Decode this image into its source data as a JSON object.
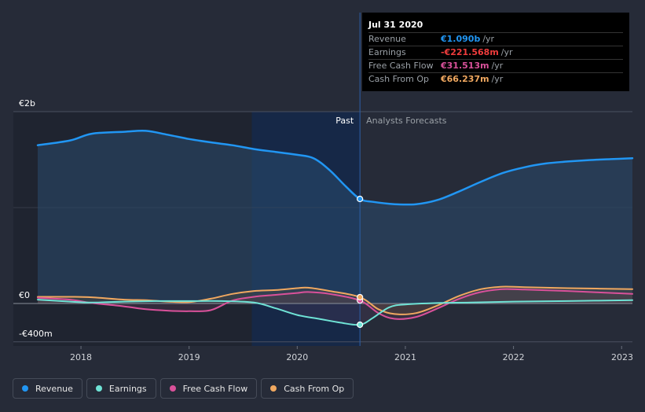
{
  "tooltip": {
    "date": "Jul 31 2020",
    "rows": [
      {
        "label": "Revenue",
        "value": "€1.090b",
        "unit": "/yr",
        "color": "#2196f3"
      },
      {
        "label": "Earnings",
        "value": "-€221.568m",
        "unit": "/yr",
        "color": "#f03c3c"
      },
      {
        "label": "Free Cash Flow",
        "value": "€31.513m",
        "unit": "/yr",
        "color": "#d9519a"
      },
      {
        "label": "Cash From Op",
        "value": "€66.237m",
        "unit": "/yr",
        "color": "#f0a860"
      }
    ]
  },
  "legend": [
    {
      "label": "Revenue",
      "color": "#2196f3"
    },
    {
      "label": "Earnings",
      "color": "#6fe3d6"
    },
    {
      "label": "Free Cash Flow",
      "color": "#d9519a"
    },
    {
      "label": "Cash From Op",
      "color": "#f0a860"
    }
  ],
  "chart_data": {
    "type": "line",
    "title": "",
    "y_unit": "€m",
    "ylim": [
      -400,
      2000
    ],
    "y_tick_labels": [
      {
        "value": 2000,
        "label": "€2b"
      },
      {
        "value": 0,
        "label": "€0"
      },
      {
        "value": -400,
        "label": "-€400m"
      }
    ],
    "xlim": [
      2017.6,
      2023.1
    ],
    "x_tick_labels": [
      {
        "value": 2018,
        "label": "2018"
      },
      {
        "value": 2019,
        "label": "2019"
      },
      {
        "value": 2020,
        "label": "2020"
      },
      {
        "value": 2021,
        "label": "2021"
      },
      {
        "value": 2022,
        "label": "2022"
      },
      {
        "value": 2023,
        "label": "2023"
      }
    ],
    "divider_x": 2020.58,
    "shade_start_x": 2019.58,
    "past_label": "Past",
    "forecast_label": "Analysts Forecasts",
    "highlight_x": 2020.58,
    "series": [
      {
        "name": "Revenue",
        "color": "#2196f3",
        "points": [
          [
            2017.6,
            1650
          ],
          [
            2017.9,
            1700
          ],
          [
            2018.1,
            1770
          ],
          [
            2018.4,
            1790
          ],
          [
            2018.6,
            1800
          ],
          [
            2018.8,
            1760
          ],
          [
            2019.0,
            1715
          ],
          [
            2019.2,
            1680
          ],
          [
            2019.4,
            1650
          ],
          [
            2019.6,
            1610
          ],
          [
            2019.8,
            1580
          ],
          [
            2020.0,
            1550
          ],
          [
            2020.15,
            1515
          ],
          [
            2020.3,
            1390
          ],
          [
            2020.45,
            1220
          ],
          [
            2020.58,
            1090
          ],
          [
            2020.7,
            1060
          ],
          [
            2020.9,
            1035
          ],
          [
            2021.1,
            1035
          ],
          [
            2021.3,
            1080
          ],
          [
            2021.5,
            1170
          ],
          [
            2021.7,
            1270
          ],
          [
            2021.9,
            1360
          ],
          [
            2022.1,
            1420
          ],
          [
            2022.3,
            1460
          ],
          [
            2022.5,
            1480
          ],
          [
            2022.7,
            1495
          ],
          [
            2022.9,
            1505
          ],
          [
            2023.1,
            1515
          ]
        ]
      },
      {
        "name": "Earnings",
        "color": "#6fe3d6",
        "points": [
          [
            2017.6,
            40
          ],
          [
            2017.9,
            20
          ],
          [
            2018.1,
            10
          ],
          [
            2018.4,
            20
          ],
          [
            2018.7,
            25
          ],
          [
            2019.0,
            25
          ],
          [
            2019.3,
            25
          ],
          [
            2019.6,
            10
          ],
          [
            2019.8,
            -50
          ],
          [
            2020.0,
            -120
          ],
          [
            2020.2,
            -160
          ],
          [
            2020.4,
            -200
          ],
          [
            2020.58,
            -221.568
          ],
          [
            2020.7,
            -150
          ],
          [
            2020.85,
            -40
          ],
          [
            2021.0,
            -10
          ],
          [
            2021.3,
            5
          ],
          [
            2021.6,
            10
          ],
          [
            2022.0,
            20
          ],
          [
            2022.5,
            25
          ],
          [
            2023.1,
            35
          ]
        ]
      },
      {
        "name": "Free Cash Flow",
        "color": "#d9519a",
        "points": [
          [
            2017.6,
            60
          ],
          [
            2017.9,
            40
          ],
          [
            2018.1,
            5
          ],
          [
            2018.4,
            -30
          ],
          [
            2018.6,
            -60
          ],
          [
            2018.8,
            -75
          ],
          [
            2019.0,
            -80
          ],
          [
            2019.2,
            -70
          ],
          [
            2019.4,
            30
          ],
          [
            2019.6,
            70
          ],
          [
            2019.8,
            90
          ],
          [
            2020.0,
            110
          ],
          [
            2020.1,
            120
          ],
          [
            2020.3,
            100
          ],
          [
            2020.58,
            31.513
          ],
          [
            2020.75,
            -100
          ],
          [
            2020.9,
            -160
          ],
          [
            2021.1,
            -140
          ],
          [
            2021.3,
            -50
          ],
          [
            2021.5,
            50
          ],
          [
            2021.7,
            120
          ],
          [
            2021.9,
            150
          ],
          [
            2022.1,
            145
          ],
          [
            2022.5,
            130
          ],
          [
            2023.1,
            100
          ]
        ]
      },
      {
        "name": "Cash From Op",
        "color": "#f0a860",
        "points": [
          [
            2017.6,
            70
          ],
          [
            2017.9,
            70
          ],
          [
            2018.1,
            65
          ],
          [
            2018.4,
            40
          ],
          [
            2018.6,
            35
          ],
          [
            2018.8,
            20
          ],
          [
            2019.0,
            15
          ],
          [
            2019.2,
            50
          ],
          [
            2019.4,
            100
          ],
          [
            2019.6,
            130
          ],
          [
            2019.8,
            140
          ],
          [
            2020.0,
            160
          ],
          [
            2020.1,
            165
          ],
          [
            2020.3,
            130
          ],
          [
            2020.58,
            66.237
          ],
          [
            2020.75,
            -60
          ],
          [
            2020.9,
            -110
          ],
          [
            2021.1,
            -100
          ],
          [
            2021.3,
            -20
          ],
          [
            2021.5,
            80
          ],
          [
            2021.7,
            150
          ],
          [
            2021.9,
            175
          ],
          [
            2022.1,
            170
          ],
          [
            2022.5,
            160
          ],
          [
            2023.1,
            150
          ]
        ]
      }
    ]
  }
}
